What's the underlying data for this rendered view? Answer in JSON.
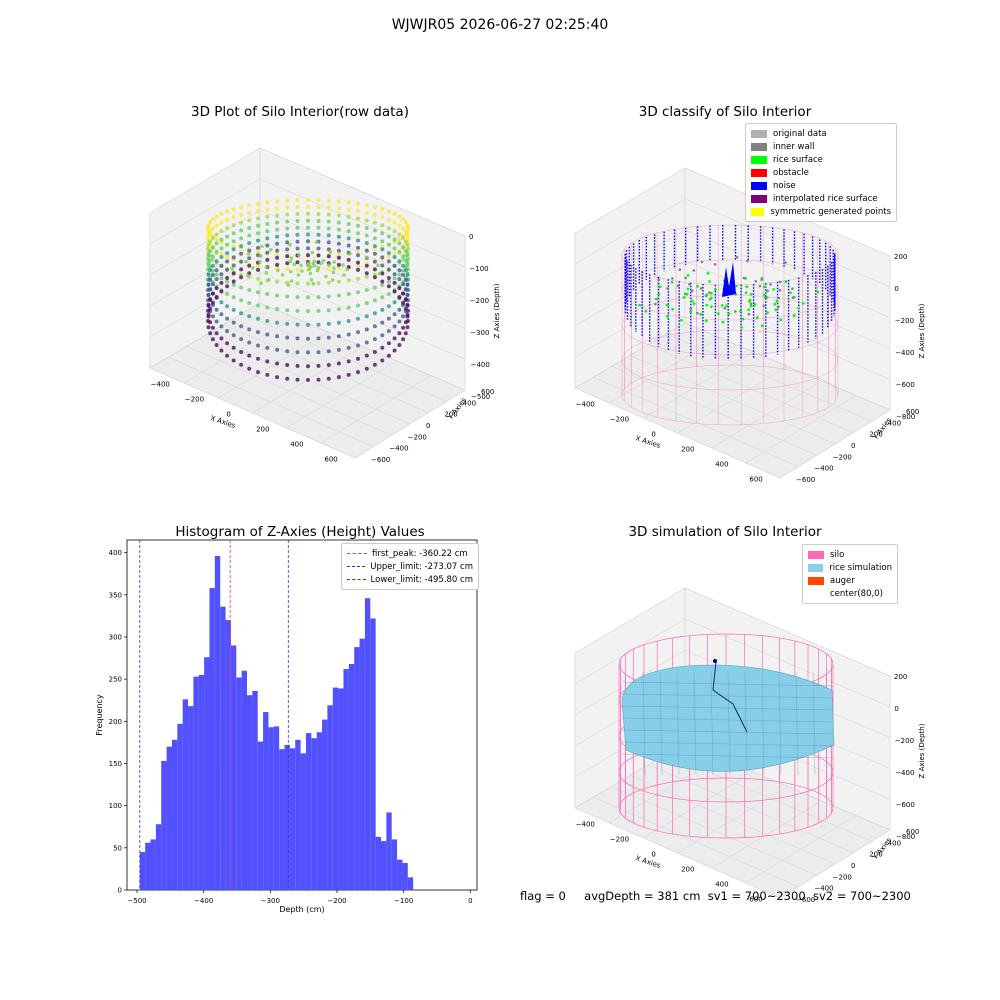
{
  "figure_title": "WJWJR05 2026-06-27 02:25:40",
  "status_line": {
    "flag": "flag = 0",
    "avg_depth": "avgDepth = 381 cm",
    "sv1": "sv1 = 700~2300",
    "sv2": "sv2 = 700~2300"
  },
  "colors": {
    "hist_bar": "#4b4bff",
    "first_peak_line": "#ff3333",
    "limit_line": "#3333cc",
    "silo": "#ff69b4",
    "rice_simulation": "#87ceeb",
    "auger": "#ff4500",
    "noise": "#0000ff",
    "rice_surface": "#00ff00",
    "inner_wall": "#808080",
    "original_data": "#b0b0b0",
    "obstacle": "#ff0000",
    "interpolated": "#800080",
    "symmetric": "#ffff00"
  },
  "chart_data": [
    {
      "type": "scatter",
      "title": "3D Plot of Silo Interior(row data)",
      "xlabel": "X Axies",
      "ylabel": "Y Axies",
      "zlabel": "Z Axies (Depth)",
      "x_ticks": [
        "−400",
        "−200",
        "0",
        "200",
        "400",
        "600"
      ],
      "y_ticks": [
        "600",
        "400",
        "200",
        "0",
        "−200",
        "−400",
        "−600"
      ],
      "z_ticks": [
        "0",
        "−100",
        "−200",
        "−300",
        "−400",
        "−500"
      ],
      "colormap": "viridis"
    },
    {
      "type": "scatter",
      "title": "3D classify of Silo Interior",
      "xlabel": "X Axies",
      "ylabel": "Y Axies",
      "zlabel": "Z Axies (Depth)",
      "x_ticks": [
        "−400",
        "−200",
        "0",
        "200",
        "400",
        "600"
      ],
      "y_ticks": [
        "600",
        "400",
        "200",
        "0",
        "−200",
        "−400",
        "−600"
      ],
      "z_ticks": [
        "200",
        "0",
        "−200",
        "−400",
        "−600",
        "−800"
      ],
      "legend": [
        {
          "label": "original data",
          "color": "#b0b0b0"
        },
        {
          "label": "inner wall",
          "color": "#808080"
        },
        {
          "label": "rice surface",
          "color": "#00ff00"
        },
        {
          "label": "obstacle",
          "color": "#ff0000"
        },
        {
          "label": "noise",
          "color": "#0000ff"
        },
        {
          "label": "interpolated rice surface",
          "color": "#800080"
        },
        {
          "label": "symmetric generated points",
          "color": "#ffff00"
        }
      ]
    },
    {
      "type": "bar",
      "title": "Histogram of Z-Axies (Height) Values",
      "xlabel": "Depth (cm)",
      "ylabel": "Frequency",
      "xlim": [
        -515,
        10
      ],
      "ylim": [
        0,
        415
      ],
      "x_ticks": [
        -500,
        -400,
        -300,
        -200,
        -100,
        0
      ],
      "x_tick_labels": [
        "−500",
        "−400",
        "−300",
        "−200",
        "−100",
        "0"
      ],
      "y_ticks": [
        0,
        50,
        100,
        150,
        200,
        250,
        300,
        350,
        400
      ],
      "bin_start": -495.8,
      "bin_width": 8.04,
      "values": [
        45,
        56,
        60,
        78,
        153,
        170,
        178,
        197,
        226,
        218,
        253,
        255,
        276,
        358,
        396,
        336,
        320,
        290,
        252,
        260,
        231,
        236,
        176,
        211,
        193,
        194,
        167,
        172,
        168,
        178,
        162,
        186,
        180,
        187,
        202,
        219,
        240,
        239,
        262,
        268,
        288,
        298,
        346,
        322,
        63,
        58,
        92,
        60,
        36,
        32,
        15
      ],
      "vlines": [
        {
          "x": -360.22,
          "label": "first_peak: -360.22 cm",
          "style": "red"
        },
        {
          "x": -273.07,
          "label": "Upper_limit: -273.07 cm",
          "style": "blue"
        },
        {
          "x": -495.8,
          "label": "Lower_limit: -495.80 cm",
          "style": "blue"
        }
      ]
    },
    {
      "type": "scatter",
      "title": "3D simulation of Silo Interior",
      "xlabel": "X Axies",
      "ylabel": "Y Axies",
      "zlabel": "Z Axies (Depth)",
      "x_ticks": [
        "−400",
        "−200",
        "0",
        "200",
        "400",
        "600"
      ],
      "y_ticks": [
        "600",
        "400",
        "200",
        "0",
        "−200",
        "−400",
        "−600"
      ],
      "z_ticks": [
        "200",
        "0",
        "−200",
        "−400",
        "−600",
        "−800"
      ],
      "legend": [
        {
          "label": "silo",
          "color": "#ff69b4"
        },
        {
          "label": "rice simulation",
          "color": "#87ceeb"
        },
        {
          "label": "auger",
          "color": "#ff4500"
        },
        {
          "label": "center(80,0)",
          "color": ""
        }
      ]
    }
  ]
}
